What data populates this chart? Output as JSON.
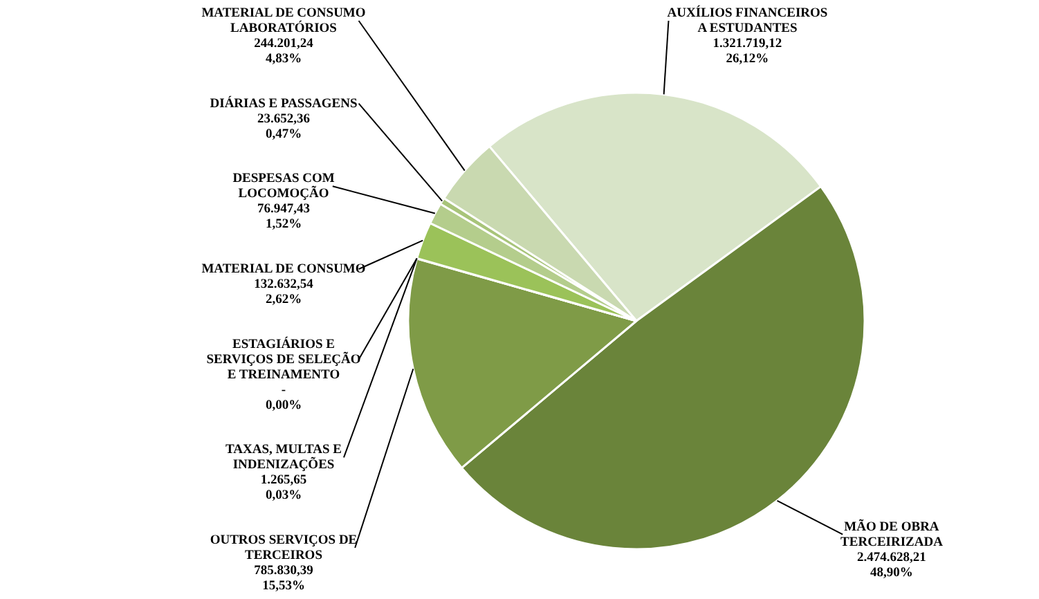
{
  "chart_data": {
    "type": "pie",
    "categories": [
      "AUXÍLIOS FINANCEIROS A ESTUDANTES",
      "MÃO DE OBRA TERCEIRIZADA",
      "OUTROS SERVIÇOS DE TERCEIROS",
      "TAXAS, MULTAS E INDENIZAÇÕES",
      "ESTAGIÁRIOS E SERVIÇOS DE SELEÇÃO E TREINAMENTO",
      "MATERIAL DE CONSUMO",
      "DESPESAS COM LOCOMOÇÃO",
      "DIÁRIAS E PASSAGENS",
      "MATERIAL DE CONSUMO LABORATÓRIOS"
    ],
    "values": [
      1321719.12,
      2474628.21,
      785830.39,
      1265.65,
      0,
      132632.54,
      76947.43,
      23652.36,
      244201.24
    ],
    "value_labels": [
      "1.321.719,12\n26,12%",
      "2.474.628,21\n48,90%",
      "785.830,39\n15,53%",
      "1.265,65\n0,03%",
      "-\n0,00%",
      "132.632,54\n2,62%",
      "76.947,43\n1,52%",
      "23.652,36\n0,47%",
      "244.201,24\n4,83%"
    ],
    "colors": [
      "#d8e4c8",
      "#6a843a",
      "#7f9b47",
      "#8aaa4d",
      "#95b551",
      "#9bc259",
      "#b4cd8c",
      "#a8c47a",
      "#c9d9b0"
    ]
  }
}
